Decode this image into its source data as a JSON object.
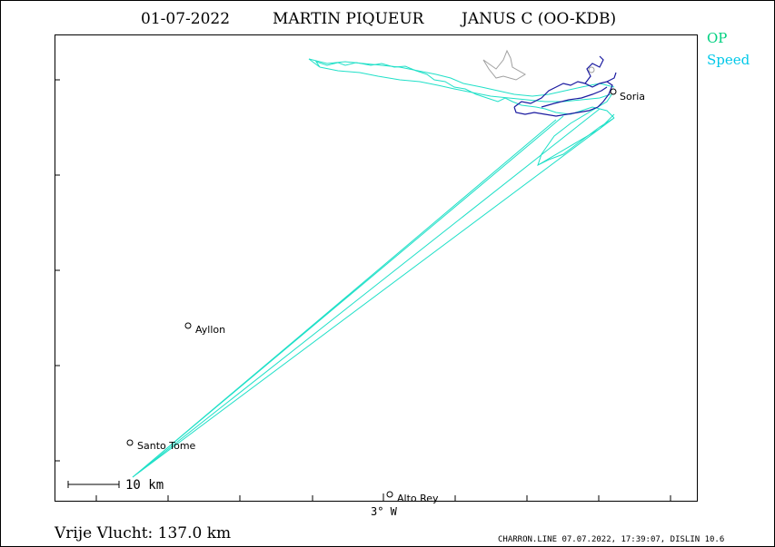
{
  "header": {
    "date": "01-07-2022",
    "pilot": "MARTIN PIQUEUR",
    "glider": "JANUS C (OO-KDB)"
  },
  "legend": {
    "op_label": "OP",
    "speed_label": "Speed",
    "op_color": "#00d080",
    "speed_color": "#00c8e8"
  },
  "places": [
    {
      "name": "Soria"
    },
    {
      "name": "Ayllon"
    },
    {
      "name": "Santo Tome"
    },
    {
      "name": "Alto Rey"
    }
  ],
  "axis": {
    "x_tick_label": "3° W"
  },
  "scale_bar": {
    "label": "10 km"
  },
  "footer": {
    "distance": "Vrije Vlucht:  137.0 km",
    "credits": "CHARRON.LINE 07.07.2022, 17:39:07, DISLIN 10.6"
  },
  "colors": {
    "track_cyan": "#20e0c8",
    "track_navy": "#1a1aa0",
    "grey_shape": "#a0a0a0",
    "frame": "#000000"
  }
}
